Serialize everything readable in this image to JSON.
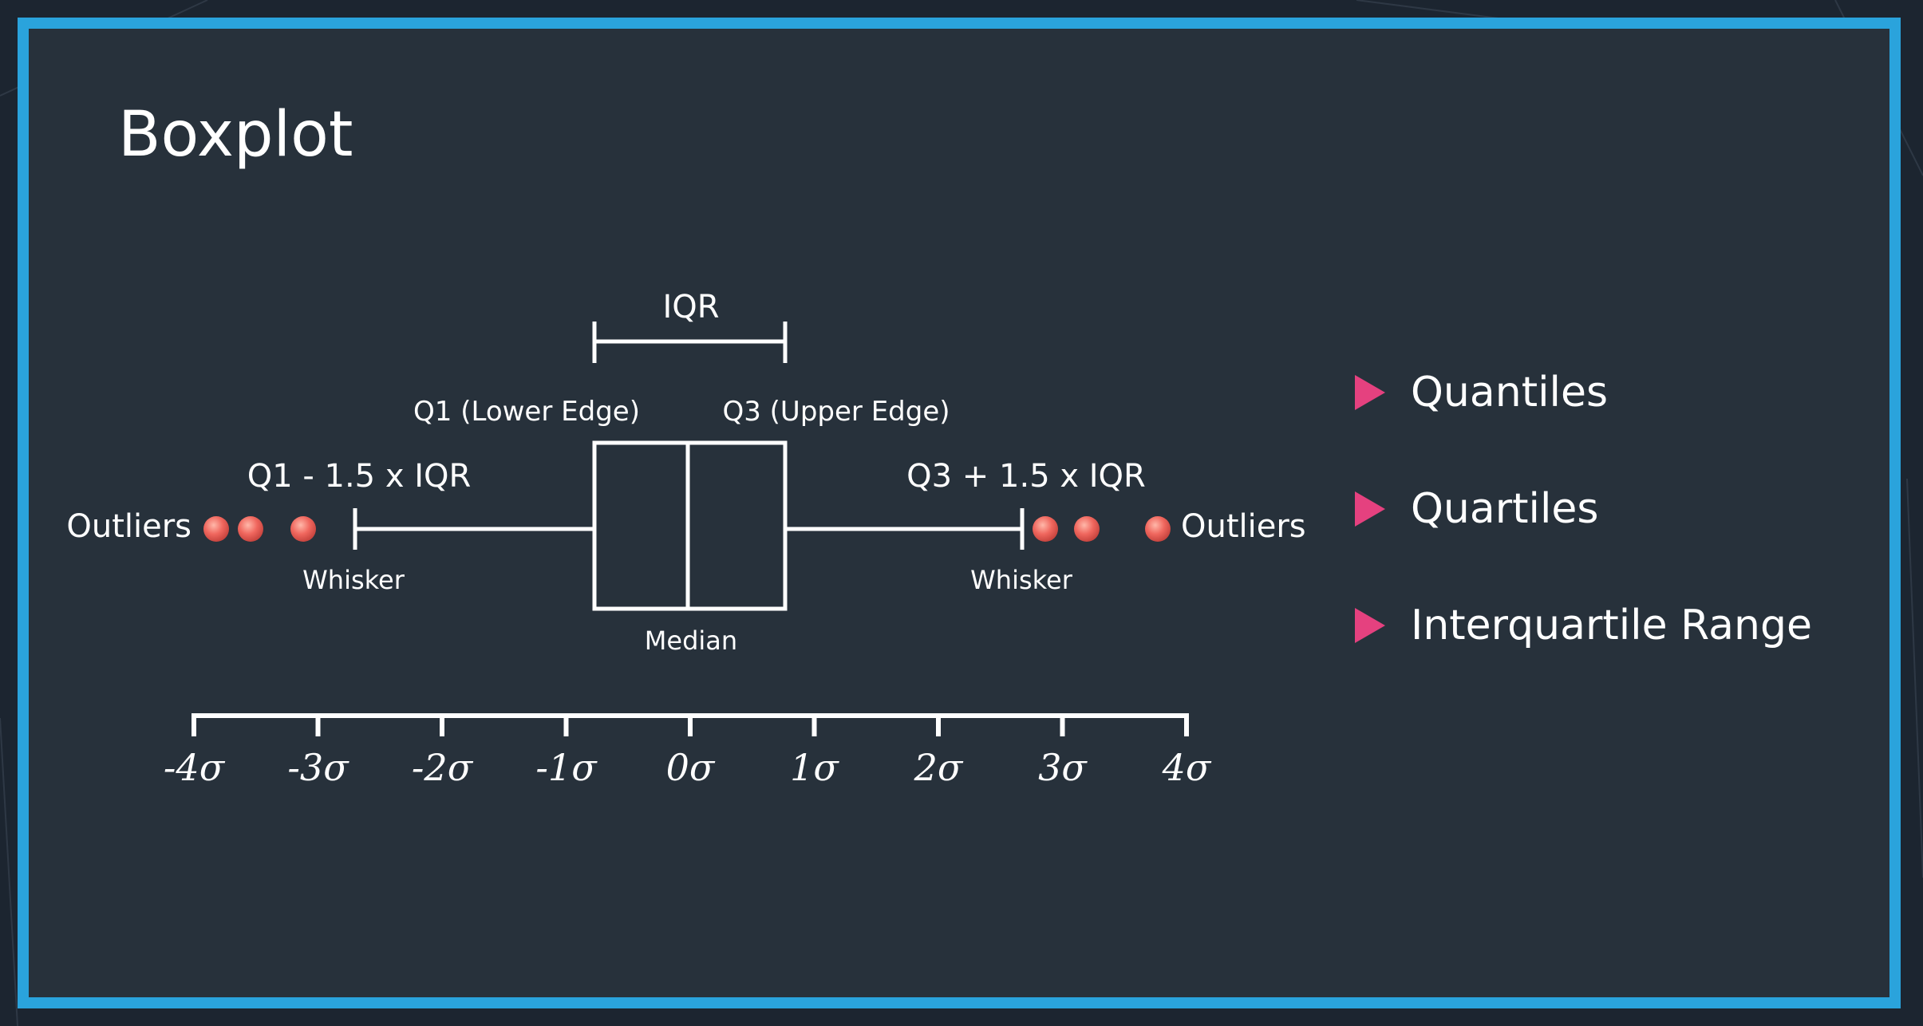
{
  "slide": {
    "title": "Boxplot"
  },
  "diagram": {
    "iqr_label": "IQR",
    "q1_label": "Q1 (Lower Edge)",
    "q3_label": "Q3 (Upper Edge)",
    "lower_fence_label": "Q1 - 1.5 x IQR",
    "upper_fence_label": "Q3 + 1.5 x IQR",
    "outliers_left_label": "Outliers",
    "outliers_right_label": "Outliers",
    "whisker_left_label": "Whisker",
    "whisker_right_label": "Whisker",
    "median_label": "Median",
    "axis_ticks": [
      "-4σ",
      "-3σ",
      "-2σ",
      "-1σ",
      "0σ",
      "1σ",
      "2σ",
      "3σ",
      "4σ"
    ],
    "colors": {
      "outlier": "#f0675e",
      "bullet": "#e5417f",
      "frame": "#2aa3dc"
    }
  },
  "bullets": [
    {
      "label": "Quantiles",
      "icon": "triangle-right-icon"
    },
    {
      "label": "Quartiles",
      "icon": "triangle-right-icon"
    },
    {
      "label": "Interquartile Range",
      "icon": "triangle-right-icon"
    }
  ]
}
